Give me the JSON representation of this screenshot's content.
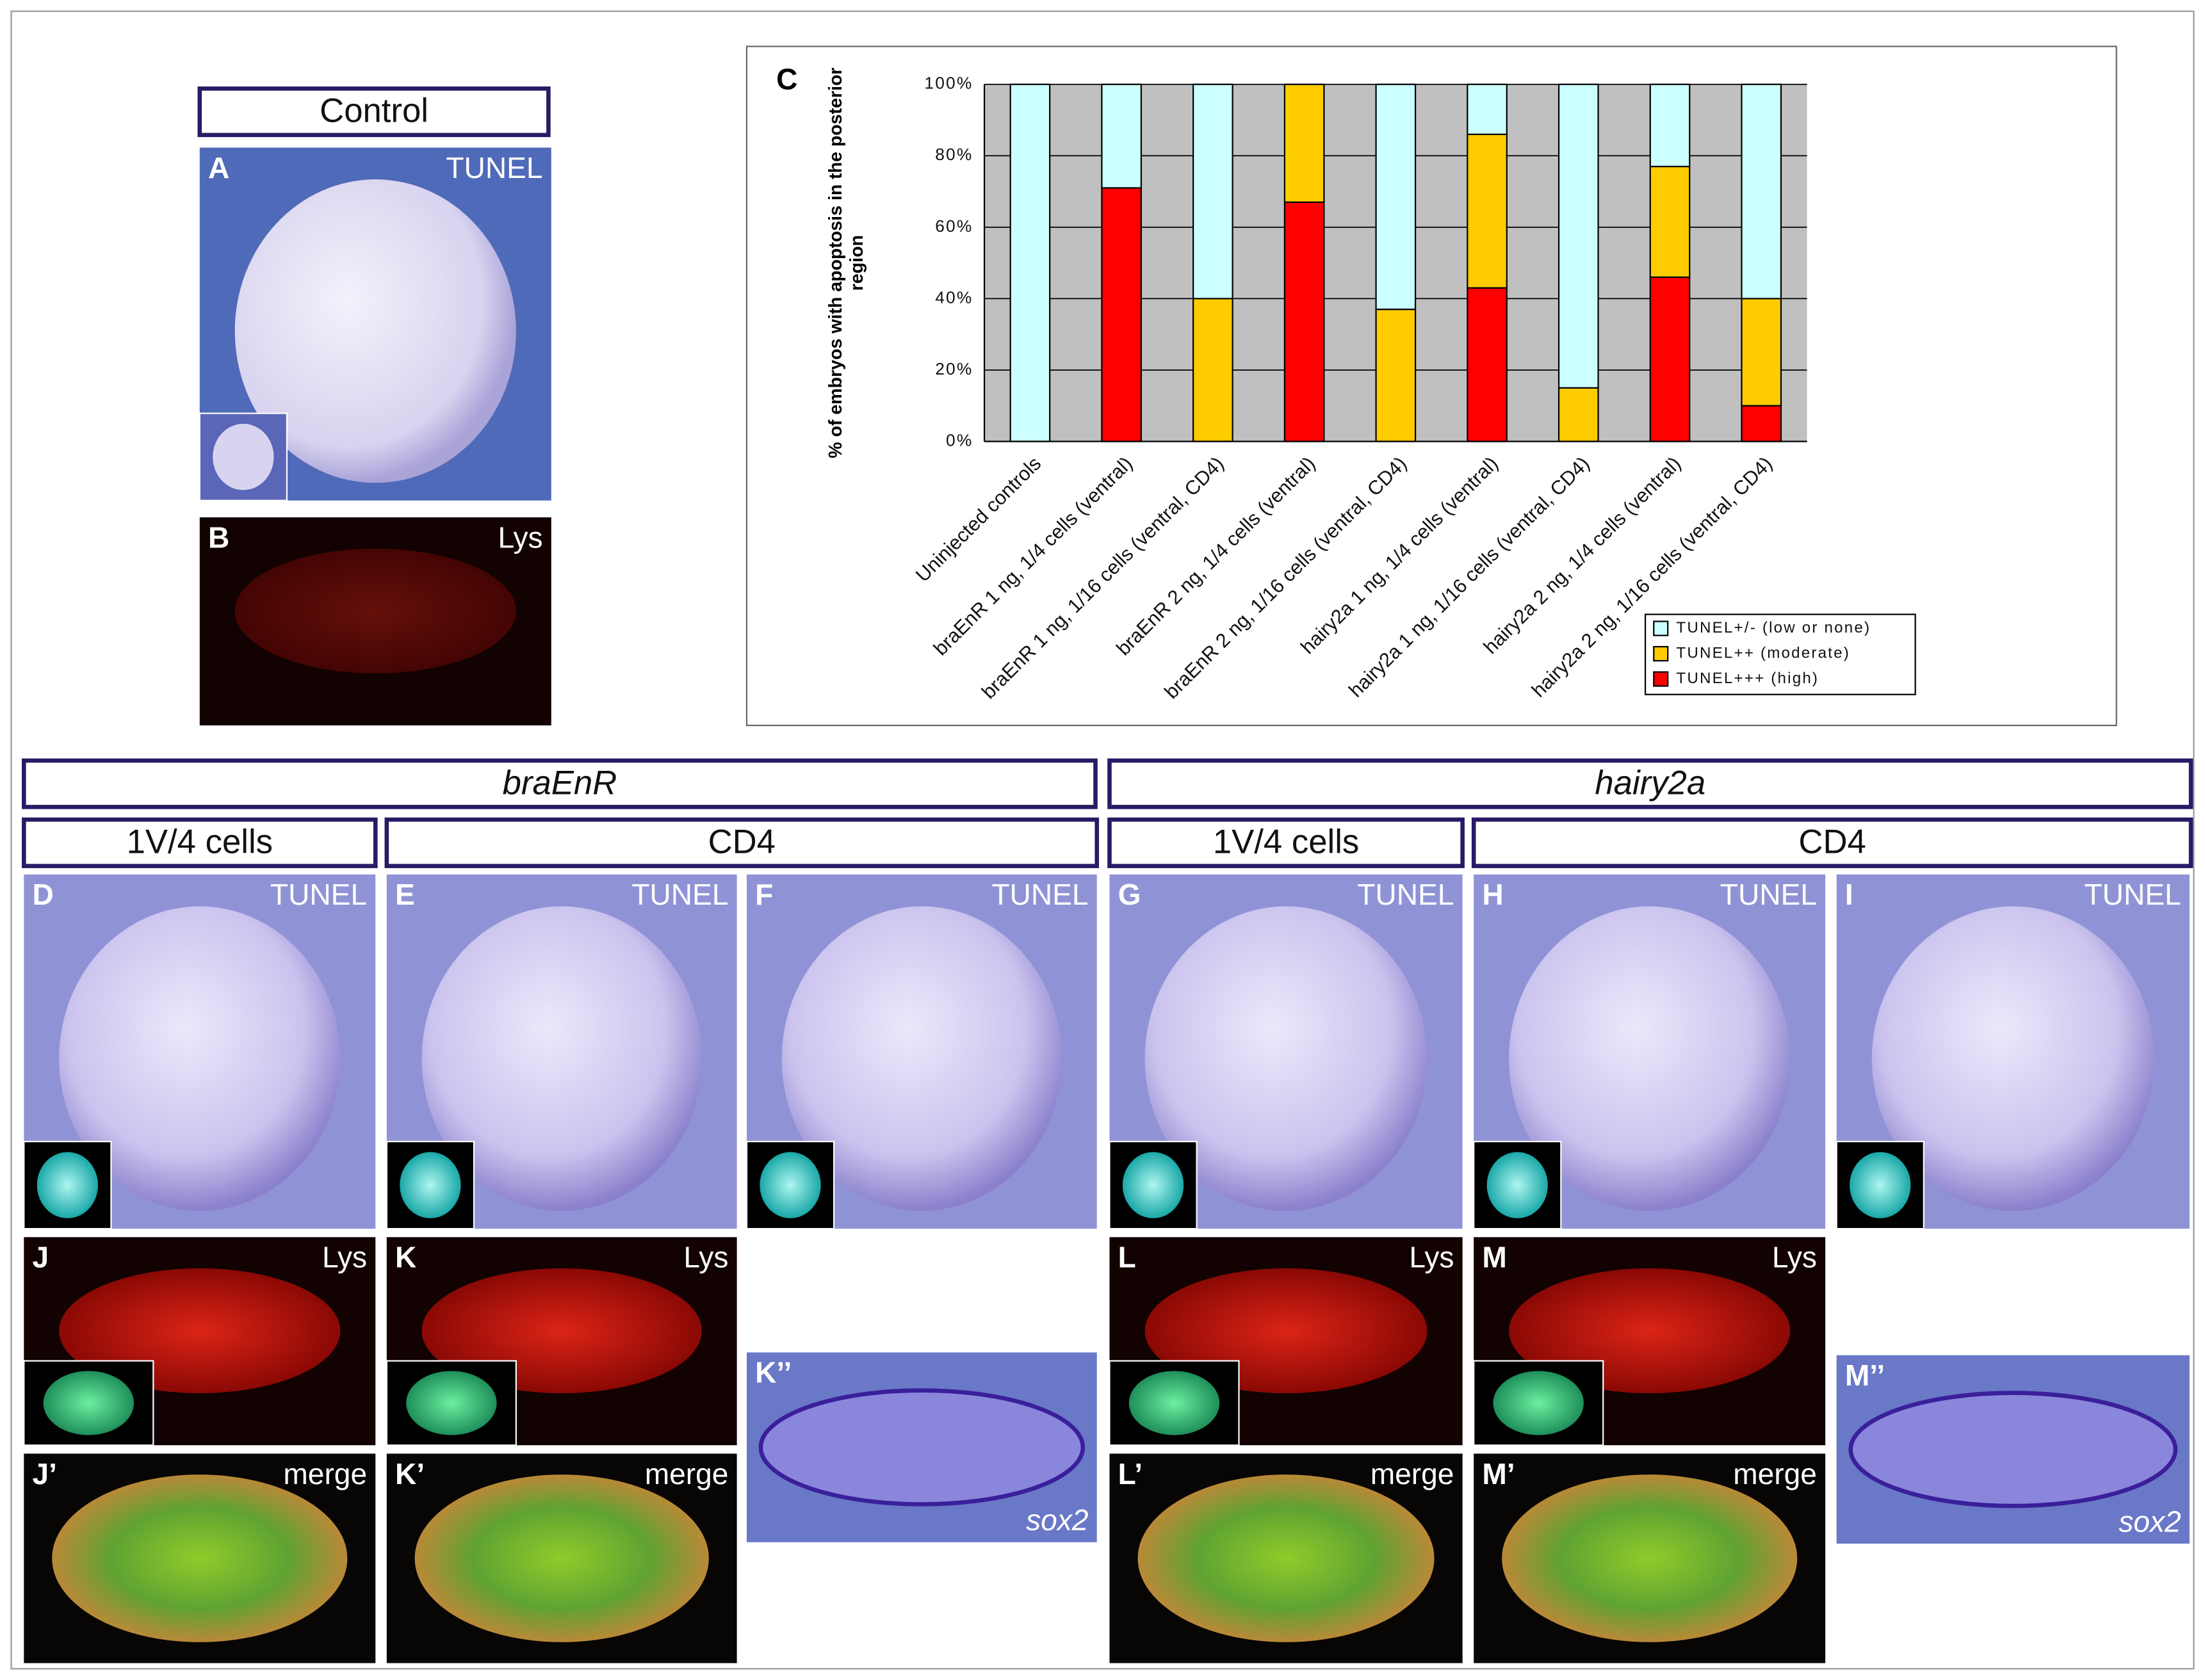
{
  "headers": {
    "control": "Control",
    "braEnR": "braEnR",
    "hairy2a": "hairy2a",
    "sub": [
      "1V/4 cells",
      "CD4",
      "1V/4 cells",
      "CD4"
    ]
  },
  "panels": [
    {
      "label": "A",
      "tag": "TUNEL"
    },
    {
      "label": "B",
      "tag": "Lys"
    },
    {
      "label": "D",
      "tag": "TUNEL"
    },
    {
      "label": "E",
      "tag": "TUNEL"
    },
    {
      "label": "F",
      "tag": "TUNEL"
    },
    {
      "label": "G",
      "tag": "TUNEL"
    },
    {
      "label": "H",
      "tag": "TUNEL"
    },
    {
      "label": "I",
      "tag": "TUNEL"
    },
    {
      "label": "J",
      "tag": "Lys"
    },
    {
      "label": "K",
      "tag": "Lys"
    },
    {
      "label": "L",
      "tag": "Lys"
    },
    {
      "label": "M",
      "tag": "Lys"
    },
    {
      "label": "J’",
      "tag": "merge"
    },
    {
      "label": "K’",
      "tag": "merge"
    },
    {
      "label": "L’",
      "tag": "merge"
    },
    {
      "label": "M’",
      "tag": "merge"
    },
    {
      "label": "K’’",
      "tag": "sox2"
    },
    {
      "label": "M’’",
      "tag": "sox2"
    }
  ],
  "chart_data": {
    "type": "stacked_bar",
    "panel_label": "C",
    "y_label": [
      "% of embryos with apoptosis in the  posterior",
      "region"
    ],
    "categories": [
      "Uninjected controls",
      "braEnR 1 ng, 1/4 cells (ventral)",
      "braEnR 1 ng, 1/16 cells (ventral, CD4)",
      "braEnR 2 ng, 1/4 cells (ventral)",
      "braEnR 2 ng, 1/16 cells (ventral, CD4)",
      "hairy2a 1 ng, 1/4 cells (ventral)",
      "hairy2a 1 ng, 1/16 cells (ventral, CD4)",
      "hairy2a 2 ng, 1/4 cells (ventral)",
      "hairy2a 2 ng, 1/16 cells (ventral, CD4)"
    ],
    "series": [
      {
        "name": "TUNEL+++ (high)",
        "color": "#ff0000",
        "values": [
          0,
          71,
          0,
          67,
          0,
          43,
          0,
          46,
          10
        ]
      },
      {
        "name": "TUNEL++ (moderate)",
        "color": "#ffcc00",
        "values": [
          0,
          0,
          40,
          33,
          37,
          43,
          15,
          31,
          30
        ]
      },
      {
        "name": "TUNEL+/- (low or none)",
        "color": "#ccffff",
        "values": [
          100,
          29,
          60,
          0,
          63,
          14,
          85,
          23,
          60
        ]
      }
    ],
    "ylim": [
      0,
      100
    ],
    "yticks": [
      {
        "value": 0,
        "label": "0%"
      },
      {
        "value": 20,
        "label": "20%"
      },
      {
        "value": 40,
        "label": "40%"
      },
      {
        "value": 60,
        "label": "60%"
      },
      {
        "value": 80,
        "label": "80%"
      },
      {
        "value": 100,
        "label": "100%"
      }
    ],
    "plot_background": "#c0c0c0",
    "grid": true,
    "legend_position": "lower right"
  }
}
